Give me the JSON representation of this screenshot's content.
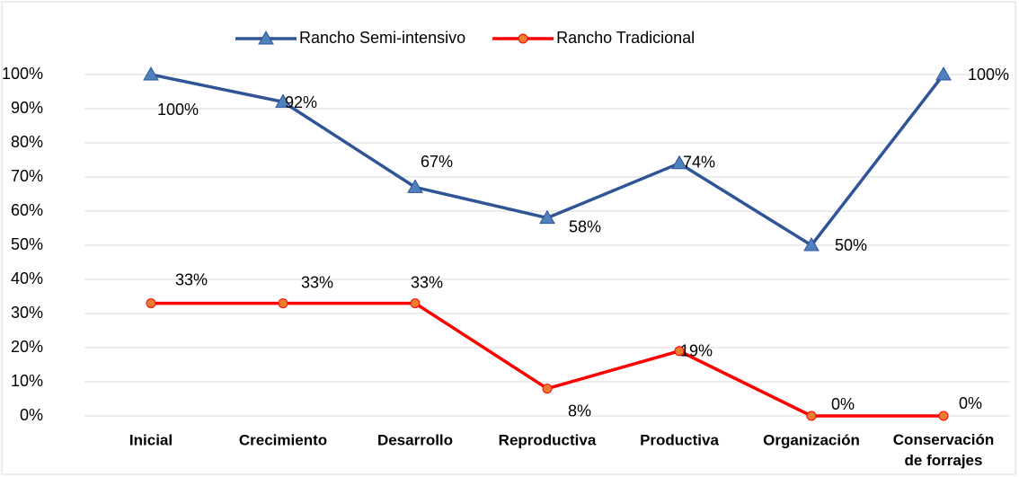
{
  "chart_data": {
    "type": "line",
    "categories": [
      "Inicial",
      "Crecimiento",
      "Desarrollo",
      "Reproductiva",
      "Productiva",
      "Organización",
      "Conservación de forrajes"
    ],
    "series": [
      {
        "name": "Rancho Semi-intensivo",
        "color": "#2f5597",
        "values": [
          100,
          92,
          67,
          58,
          74,
          50,
          100
        ],
        "value_labels": [
          "100%",
          "92%",
          "67%",
          "58%",
          "74%",
          "50%",
          "100%"
        ]
      },
      {
        "name": "Rancho Tradicional",
        "color": "#ff0000",
        "values": [
          33,
          33,
          33,
          8,
          19,
          0,
          0
        ],
        "value_labels": [
          "33%",
          "33%",
          "33%",
          "8%",
          "19%",
          "0%",
          "0%"
        ]
      }
    ],
    "ylim": [
      0,
      100
    ],
    "yticks": [
      {
        "value": 0,
        "label": "0%"
      },
      {
        "value": 10,
        "label": "10%"
      },
      {
        "value": 20,
        "label": "20%"
      },
      {
        "value": 30,
        "label": "30%"
      },
      {
        "value": 40,
        "label": "40%"
      },
      {
        "value": 50,
        "label": "50%"
      },
      {
        "value": 60,
        "label": "60%"
      },
      {
        "value": 70,
        "label": "70%"
      },
      {
        "value": 80,
        "label": "80%"
      },
      {
        "value": 90,
        "label": "90%"
      },
      {
        "value": 100,
        "label": "100%"
      }
    ],
    "grid": true,
    "legend": "top"
  }
}
